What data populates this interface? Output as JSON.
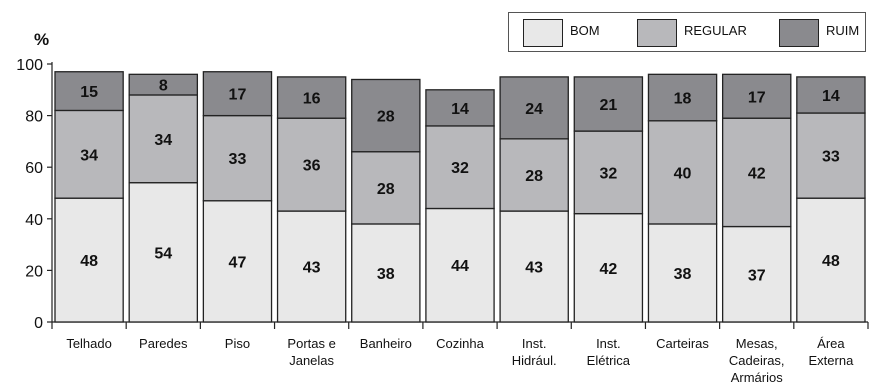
{
  "chart_data": {
    "type": "bar",
    "stacked": true,
    "ylabel": "%",
    "ylim": [
      0,
      100
    ],
    "yticks": [
      0,
      20,
      40,
      60,
      80,
      100
    ],
    "legend_position": "top-right",
    "grid": false,
    "categories": [
      "Telhado",
      "Paredes",
      "Piso",
      "Portas e\nJanelas",
      "Banheiro",
      "Cozinha",
      "Inst.\nHidrául.",
      "Inst.\nElétrica",
      "Carteiras",
      "Mesas,\nCadeiras,\nArmários",
      "Área\nExterna"
    ],
    "series": [
      {
        "name": "BOM",
        "color": "#e8e8e8",
        "values": [
          48,
          54,
          47,
          43,
          38,
          44,
          43,
          42,
          38,
          37,
          48
        ]
      },
      {
        "name": "REGULAR",
        "color": "#b8b8bb",
        "values": [
          34,
          34,
          33,
          36,
          28,
          32,
          28,
          32,
          40,
          42,
          33
        ]
      },
      {
        "name": "RUIM",
        "color": "#8a8a8e",
        "values": [
          15,
          8,
          17,
          16,
          28,
          14,
          24,
          21,
          18,
          17,
          14
        ]
      }
    ]
  }
}
